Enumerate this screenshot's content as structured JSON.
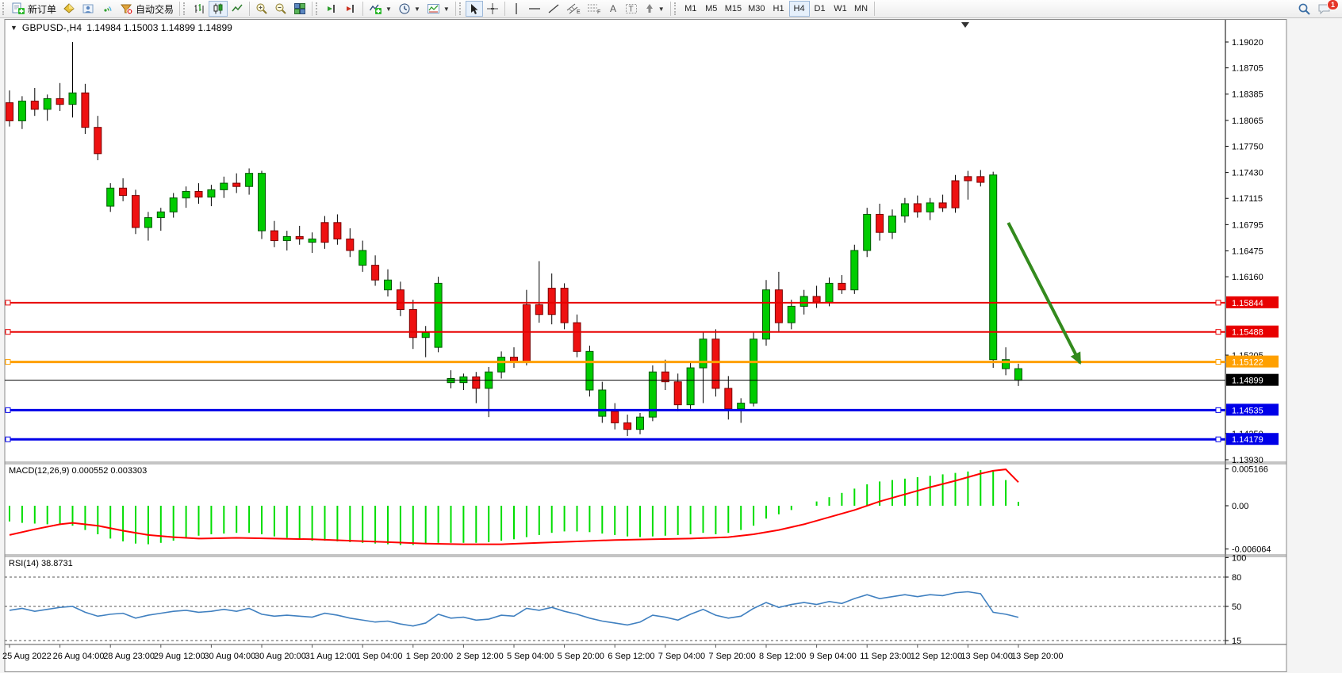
{
  "toolbar": {
    "new_order_label": "新订单",
    "autotrading_label": "自动交易",
    "notification_count": "1",
    "timeframes": [
      "M1",
      "M5",
      "M15",
      "M30",
      "H1",
      "H4",
      "D1",
      "W1",
      "MN"
    ],
    "active_timeframe": "H4"
  },
  "chart": {
    "title_symbol": "GBPUSD-,H4",
    "ohlc": "1.14984 1.15003 1.14899 1.14899",
    "price_ticks": [
      "1.19020",
      "1.18705",
      "1.18385",
      "1.18065",
      "1.17750",
      "1.17430",
      "1.17115",
      "1.16795",
      "1.16475",
      "1.16160",
      "1.15205",
      "1.14250",
      "1.13930"
    ],
    "axis_range": {
      "max": 1.1902,
      "min": 1.1393
    },
    "hlines": [
      {
        "label": "1.15844",
        "value": 1.15844,
        "color": "#e80000",
        "width": 2,
        "anchor": true
      },
      {
        "label": "1.15488",
        "value": 1.15488,
        "color": "#e80000",
        "width": 2,
        "anchor": true
      },
      {
        "label": "1.15122",
        "value": 1.15122,
        "color": "#ffa000",
        "width": 3,
        "anchor": true
      },
      {
        "label": "1.14899",
        "value": 1.14899,
        "color": "#000000",
        "width": 1,
        "anchor": false
      },
      {
        "label": "1.14535",
        "value": 1.14535,
        "color": "#0000e8",
        "width": 3,
        "anchor": true
      },
      {
        "label": "1.14179",
        "value": 1.14179,
        "color": "#0000e8",
        "width": 3,
        "anchor": true
      }
    ],
    "arrow": {
      "from_bar": 79.2,
      "from_price": 1.16818,
      "to_bar": 84.9,
      "to_price": 1.15108,
      "color": "#338a1d"
    },
    "candle_colors": {
      "up": "#00cc00",
      "down": "#ee1111"
    },
    "candles": [
      [
        1.1828,
        1.1843,
        1.1799,
        1.1806,
        "r"
      ],
      [
        1.1806,
        1.1836,
        1.1796,
        1.183,
        "g"
      ],
      [
        1.183,
        1.1846,
        1.1812,
        1.182,
        "r"
      ],
      [
        1.182,
        1.1838,
        1.1806,
        1.1833,
        "g"
      ],
      [
        1.1833,
        1.1852,
        1.1818,
        1.1826,
        "r"
      ],
      [
        1.1826,
        1.1902,
        1.181,
        1.184,
        "g"
      ],
      [
        1.184,
        1.1851,
        1.179,
        1.1798,
        "r"
      ],
      [
        1.1798,
        1.1812,
        1.1758,
        1.1766,
        "r"
      ],
      [
        1.1702,
        1.173,
        1.1695,
        1.1724,
        "g"
      ],
      [
        1.1724,
        1.1736,
        1.1708,
        1.1715,
        "r"
      ],
      [
        1.1715,
        1.1722,
        1.1668,
        1.1676,
        "r"
      ],
      [
        1.1676,
        1.1695,
        1.166,
        1.1688,
        "g"
      ],
      [
        1.1688,
        1.17,
        1.1672,
        1.1695,
        "g"
      ],
      [
        1.1695,
        1.1718,
        1.1688,
        1.1712,
        "g"
      ],
      [
        1.1712,
        1.1726,
        1.17,
        1.172,
        "g"
      ],
      [
        1.172,
        1.173,
        1.1705,
        1.1713,
        "r"
      ],
      [
        1.1713,
        1.1728,
        1.1702,
        1.1722,
        "g"
      ],
      [
        1.1722,
        1.1738,
        1.1712,
        1.173,
        "g"
      ],
      [
        1.173,
        1.1742,
        1.1718,
        1.1726,
        "r"
      ],
      [
        1.1726,
        1.1748,
        1.1716,
        1.1742,
        "g"
      ],
      [
        1.1742,
        1.1745,
        1.1662,
        1.1672,
        "g"
      ],
      [
        1.1672,
        1.1684,
        1.1652,
        1.166,
        "r"
      ],
      [
        1.166,
        1.1672,
        1.1648,
        1.1665,
        "g"
      ],
      [
        1.1665,
        1.1678,
        1.1655,
        1.1662,
        "r"
      ],
      [
        1.1662,
        1.167,
        1.1645,
        1.1658,
        "g"
      ],
      [
        1.1658,
        1.169,
        1.165,
        1.1682,
        "r"
      ],
      [
        1.1682,
        1.1692,
        1.1655,
        1.1662,
        "r"
      ],
      [
        1.1662,
        1.1675,
        1.164,
        1.1648,
        "r"
      ],
      [
        1.1648,
        1.166,
        1.1622,
        1.163,
        "g"
      ],
      [
        1.163,
        1.1642,
        1.1605,
        1.1612,
        "r"
      ],
      [
        1.1612,
        1.1625,
        1.1592,
        1.16,
        "g"
      ],
      [
        1.16,
        1.161,
        1.1568,
        1.1576,
        "r"
      ],
      [
        1.1576,
        1.1588,
        1.1528,
        1.1542,
        "r"
      ],
      [
        1.1542,
        1.1556,
        1.1518,
        1.1548,
        "g"
      ],
      [
        1.153,
        1.1616,
        1.1524,
        1.1608,
        "g"
      ],
      [
        1.1492,
        1.1502,
        1.148,
        1.1487,
        "g"
      ],
      [
        1.1487,
        1.1498,
        1.1478,
        1.1494,
        "g"
      ],
      [
        1.1494,
        1.15,
        1.1462,
        1.148,
        "r"
      ],
      [
        1.148,
        1.1506,
        1.1445,
        1.15,
        "g"
      ],
      [
        1.15,
        1.1525,
        1.1492,
        1.1518,
        "g"
      ],
      [
        1.1518,
        1.153,
        1.1505,
        1.1512,
        "r"
      ],
      [
        1.1512,
        1.16,
        1.1508,
        1.1582,
        "r"
      ],
      [
        1.1582,
        1.1635,
        1.156,
        1.157,
        "r"
      ],
      [
        1.157,
        1.162,
        1.1558,
        1.1602,
        "r"
      ],
      [
        1.1602,
        1.1608,
        1.1552,
        1.156,
        "r"
      ],
      [
        1.156,
        1.157,
        1.1518,
        1.1525,
        "r"
      ],
      [
        1.1525,
        1.1532,
        1.147,
        1.1478,
        "g"
      ],
      [
        1.1478,
        1.1488,
        1.1438,
        1.1446,
        "g"
      ],
      [
        1.1452,
        1.1462,
        1.143,
        1.1438,
        "r"
      ],
      [
        1.1438,
        1.1448,
        1.1422,
        1.143,
        "r"
      ],
      [
        1.143,
        1.145,
        1.1424,
        1.1445,
        "g"
      ],
      [
        1.1445,
        1.1508,
        1.144,
        1.15,
        "g"
      ],
      [
        1.15,
        1.1515,
        1.1478,
        1.1488,
        "r"
      ],
      [
        1.1488,
        1.1498,
        1.1452,
        1.146,
        "r"
      ],
      [
        1.146,
        1.1512,
        1.1455,
        1.1505,
        "g"
      ],
      [
        1.1505,
        1.1548,
        1.1462,
        1.154,
        "g"
      ],
      [
        1.154,
        1.1552,
        1.147,
        1.148,
        "r"
      ],
      [
        1.148,
        1.1495,
        1.1442,
        1.1455,
        "r"
      ],
      [
        1.1455,
        1.1468,
        1.1438,
        1.1462,
        "g"
      ],
      [
        1.1462,
        1.1548,
        1.1458,
        1.154,
        "g"
      ],
      [
        1.154,
        1.1612,
        1.1532,
        1.16,
        "g"
      ],
      [
        1.16,
        1.1622,
        1.1548,
        1.156,
        "r"
      ],
      [
        1.156,
        1.1588,
        1.1552,
        1.158,
        "g"
      ],
      [
        1.158,
        1.16,
        1.157,
        1.1592,
        "g"
      ],
      [
        1.1592,
        1.1605,
        1.1578,
        1.1585,
        "r"
      ],
      [
        1.1585,
        1.1615,
        1.158,
        1.1608,
        "g"
      ],
      [
        1.1608,
        1.1618,
        1.1595,
        1.16,
        "r"
      ],
      [
        1.16,
        1.1655,
        1.1595,
        1.1648,
        "g"
      ],
      [
        1.1648,
        1.17,
        1.164,
        1.1692,
        "g"
      ],
      [
        1.1692,
        1.1705,
        1.166,
        1.167,
        "r"
      ],
      [
        1.167,
        1.1698,
        1.1662,
        1.169,
        "g"
      ],
      [
        1.169,
        1.1712,
        1.1682,
        1.1705,
        "g"
      ],
      [
        1.1705,
        1.1715,
        1.1688,
        1.1695,
        "r"
      ],
      [
        1.1695,
        1.1712,
        1.1685,
        1.1706,
        "g"
      ],
      [
        1.1706,
        1.1716,
        1.1695,
        1.17,
        "r"
      ],
      [
        1.17,
        1.174,
        1.1694,
        1.1733,
        "r"
      ],
      [
        1.1733,
        1.1745,
        1.171,
        1.1738,
        "r"
      ],
      [
        1.1738,
        1.1746,
        1.1726,
        1.1731,
        "r"
      ],
      [
        1.174,
        1.1744,
        1.1505,
        1.1515,
        "g"
      ],
      [
        1.1515,
        1.153,
        1.1496,
        1.1504,
        "g"
      ],
      [
        1.1504,
        1.151,
        1.1483,
        1.14899,
        "g"
      ]
    ]
  },
  "macd": {
    "label": "MACD(12,26,9) 0.000552 0.003303",
    "axis_ticks": [
      {
        "v": 0.005166,
        "label": "0.005166"
      },
      {
        "v": 0,
        "label": "0.00"
      },
      {
        "v": -0.006064,
        "label": "-0.006064"
      }
    ],
    "histogram_color": "#00dd00",
    "signal_color": "#ff0000",
    "histogram": [
      -0.0022,
      -0.0024,
      -0.0025,
      -0.0026,
      -0.0027,
      -0.0028,
      -0.0034,
      -0.004,
      -0.0046,
      -0.005,
      -0.0053,
      -0.0054,
      -0.0052,
      -0.0049,
      -0.0045,
      -0.0042,
      -0.004,
      -0.0039,
      -0.0038,
      -0.0038,
      -0.004,
      -0.0043,
      -0.0045,
      -0.0047,
      -0.0049,
      -0.0049,
      -0.005,
      -0.0051,
      -0.0052,
      -0.0053,
      -0.0054,
      -0.0055,
      -0.0055,
      -0.0054,
      -0.0052,
      -0.0052,
      -0.0052,
      -0.0052,
      -0.0051,
      -0.0049,
      -0.0047,
      -0.0044,
      -0.0041,
      -0.0038,
      -0.0036,
      -0.0036,
      -0.0037,
      -0.0039,
      -0.0041,
      -0.0043,
      -0.0044,
      -0.0043,
      -0.0042,
      -0.0041,
      -0.004,
      -0.0038,
      -0.004,
      -0.0038,
      -0.0034,
      -0.0028,
      -0.0018,
      -0.0012,
      -0.0006,
      0.0,
      0.0006,
      0.0012,
      0.0018,
      0.0024,
      0.003,
      0.0034,
      0.0036,
      0.0038,
      0.004,
      0.0042,
      0.0044,
      0.0046,
      0.0048,
      0.005,
      0.005,
      0.0036,
      0.000552
    ],
    "signal": [
      [
        0,
        -0.0041
      ],
      [
        2,
        -0.0033
      ],
      [
        4,
        -0.0026
      ],
      [
        5,
        -0.0024
      ],
      [
        7,
        -0.0028
      ],
      [
        9,
        -0.0035
      ],
      [
        11,
        -0.0041
      ],
      [
        13,
        -0.0044
      ],
      [
        15,
        -0.0046
      ],
      [
        18,
        -0.0045
      ],
      [
        21,
        -0.0046
      ],
      [
        24,
        -0.0047
      ],
      [
        27,
        -0.0049
      ],
      [
        30,
        -0.0051
      ],
      [
        33,
        -0.0053
      ],
      [
        36,
        -0.0054
      ],
      [
        39,
        -0.0054
      ],
      [
        42,
        -0.0052
      ],
      [
        45,
        -0.005
      ],
      [
        48,
        -0.0048
      ],
      [
        51,
        -0.0047
      ],
      [
        54,
        -0.0046
      ],
      [
        57,
        -0.0044
      ],
      [
        59,
        -0.004
      ],
      [
        61,
        -0.0034
      ],
      [
        63,
        -0.0026
      ],
      [
        65,
        -0.0016
      ],
      [
        67,
        -0.0006
      ],
      [
        69,
        0.0006
      ],
      [
        71,
        0.0016
      ],
      [
        73,
        0.0026
      ],
      [
        75,
        0.0035
      ],
      [
        76,
        0.004
      ],
      [
        77,
        0.0045
      ],
      [
        78,
        0.0049
      ],
      [
        79,
        0.0051
      ],
      [
        80,
        0.0033
      ]
    ]
  },
  "rsi": {
    "label": "RSI(14) 38.8731",
    "line_color": "#4080c0",
    "levels": [
      100,
      80,
      50,
      15
    ],
    "dashed_levels": [
      80,
      50,
      15
    ],
    "line": [
      46,
      48,
      45,
      47,
      49,
      50,
      44,
      40,
      42,
      43,
      38,
      41,
      43,
      45,
      46,
      44,
      45,
      47,
      45,
      48,
      42,
      40,
      41,
      40,
      39,
      43,
      41,
      38,
      36,
      34,
      35,
      32,
      30,
      33,
      42,
      38,
      39,
      36,
      37,
      41,
      40,
      48,
      46,
      49,
      45,
      42,
      38,
      35,
      33,
      31,
      34,
      41,
      39,
      36,
      42,
      47,
      41,
      38,
      40,
      48,
      54,
      49,
      52,
      54,
      52,
      55,
      53,
      58,
      62,
      58,
      60,
      62,
      60,
      62,
      61,
      64,
      65,
      63,
      44,
      42,
      38.87
    ]
  },
  "time_axis": {
    "labels": [
      "25 Aug 2022",
      "26 Aug 04:00",
      "28 Aug 23:00",
      "29 Aug 12:00",
      "30 Aug 04:00",
      "30 Aug 20:00",
      "31 Aug 12:00",
      "1 Sep 04:00",
      "1 Sep 20:00",
      "2 Sep 12:00",
      "5 Sep 04:00",
      "5 Sep 20:00",
      "6 Sep 12:00",
      "7 Sep 04:00",
      "7 Sep 20:00",
      "8 Sep 12:00",
      "9 Sep 04:00",
      "11 Sep 23:00",
      "12 Sep 12:00",
      "13 Sep 04:00",
      "13 Sep 20:00"
    ]
  }
}
